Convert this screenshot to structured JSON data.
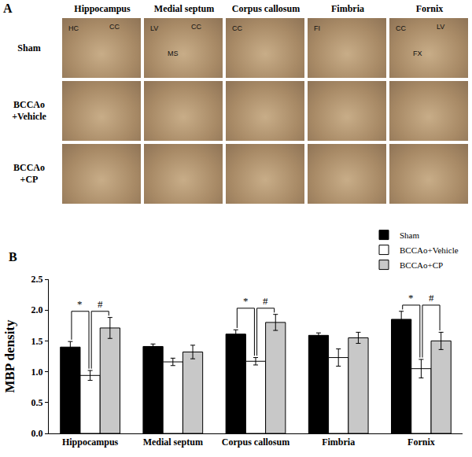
{
  "panel_a": {
    "label": "A",
    "columns": [
      "Hippocampus",
      "Medial septum",
      "Corpus callosum",
      "Fimbria",
      "Fornix"
    ],
    "rows": [
      {
        "label": [
          "Sham"
        ],
        "cell_labels": [
          [
            "HC",
            "CC"
          ],
          [
            "LV",
            "CC",
            "MS"
          ],
          [
            "CC"
          ],
          [
            "FI"
          ],
          [
            "CC",
            "LV",
            "FX"
          ]
        ]
      },
      {
        "label": [
          "BCCAo",
          "+Vehicle"
        ]
      },
      {
        "label": [
          "BCCAo",
          "+CP"
        ]
      }
    ]
  },
  "chart_data": {
    "type": "bar",
    "panel_label": "B",
    "y_label": "MBP density",
    "categories": [
      "Hippocampus",
      "Medial septum",
      "Corpus callosum",
      "Fimbria",
      "Fornix"
    ],
    "series": [
      {
        "name": "Sham",
        "color": "#000000",
        "values": [
          1.4,
          1.41,
          1.61,
          1.59,
          1.85
        ],
        "errors": [
          0.09,
          0.04,
          0.07,
          0.04,
          0.13
        ]
      },
      {
        "name": "BCCAo+Vehicle",
        "color": "#ffffff",
        "values": [
          0.94,
          1.16,
          1.17,
          1.23,
          1.05
        ],
        "errors": [
          0.08,
          0.06,
          0.06,
          0.14,
          0.15
        ]
      },
      {
        "name": "BCCAo+CP",
        "color": "#c8c8c8",
        "values": [
          1.71,
          1.32,
          1.8,
          1.55,
          1.5
        ],
        "errors": [
          0.17,
          0.11,
          0.13,
          0.09,
          0.14
        ]
      }
    ],
    "significance": [
      {
        "category": "Hippocampus",
        "text": "*",
        "pair": [
          "Sham",
          "BCCAo+Vehicle"
        ]
      },
      {
        "category": "Hippocampus",
        "text": "#",
        "pair": [
          "BCCAo+Vehicle",
          "BCCAo+CP"
        ]
      },
      {
        "category": "Corpus callosum",
        "text": "*",
        "pair": [
          "Sham",
          "BCCAo+Vehicle"
        ]
      },
      {
        "category": "Corpus callosum",
        "text": "#",
        "pair": [
          "BCCAo+Vehicle",
          "BCCAo+CP"
        ]
      },
      {
        "category": "Fornix",
        "text": "*",
        "pair": [
          "Sham",
          "BCCAo+Vehicle"
        ]
      },
      {
        "category": "Fornix",
        "text": "#",
        "pair": [
          "BCCAo+Vehicle",
          "BCCAo+CP"
        ]
      }
    ],
    "ylim": [
      0,
      2.5
    ],
    "yticks": [
      {
        "value": 0,
        "label": "0.0"
      },
      {
        "value": 0.5,
        "label": "0.5"
      },
      {
        "value": 1,
        "label": "1.0"
      },
      {
        "value": 1.5,
        "label": "1.5"
      },
      {
        "value": 2,
        "label": "2.0"
      },
      {
        "value": 2.5,
        "label": "2.5"
      }
    ],
    "grid": false,
    "legend": "top-right"
  }
}
